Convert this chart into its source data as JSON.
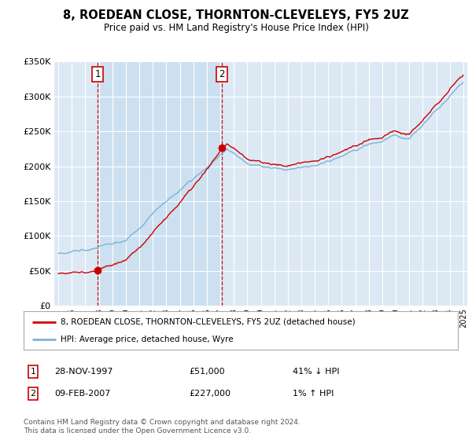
{
  "title": "8, ROEDEAN CLOSE, THORNTON-CLEVELEYS, FY5 2UZ",
  "subtitle": "Price paid vs. HM Land Registry's House Price Index (HPI)",
  "fig_bg_color": "#ffffff",
  "plot_bg_color": "#dce9f5",
  "shade_color": "#cce0f0",
  "ylim": [
    0,
    350000
  ],
  "yticks": [
    0,
    50000,
    100000,
    150000,
    200000,
    250000,
    300000,
    350000
  ],
  "ytick_labels": [
    "£0",
    "£50K",
    "£100K",
    "£150K",
    "£200K",
    "£250K",
    "£300K",
    "£350K"
  ],
  "sale1_date": 1997.91,
  "sale1_price": 51000,
  "sale2_date": 2007.11,
  "sale2_price": 227000,
  "red_line_color": "#cc0000",
  "blue_line_color": "#7ab3d9",
  "dashed_vline_color": "#cc0000",
  "legend_entry1": "8, ROEDEAN CLOSE, THORNTON-CLEVELEYS, FY5 2UZ (detached house)",
  "legend_entry2": "HPI: Average price, detached house, Wyre",
  "table_row1": [
    "1",
    "28-NOV-1997",
    "£51,000",
    "41% ↓ HPI"
  ],
  "table_row2": [
    "2",
    "09-FEB-2007",
    "£227,000",
    "1% ↑ HPI"
  ],
  "footer": "Contains HM Land Registry data © Crown copyright and database right 2024.\nThis data is licensed under the Open Government Licence v3.0.",
  "xlim_left": 1994.7,
  "xlim_right": 2025.3
}
